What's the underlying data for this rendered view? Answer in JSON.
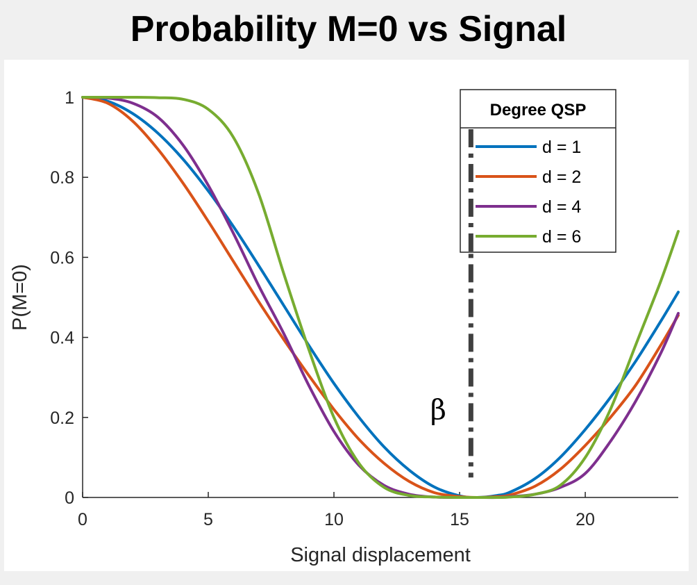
{
  "chart_data": {
    "type": "line",
    "title": "Probability M=0 vs Signal",
    "xlabel": "Signal displacement",
    "ylabel": "P(M=0)",
    "xlim": [
      0,
      23.7
    ],
    "ylim": [
      0,
      1
    ],
    "xticks": [
      0,
      5,
      10,
      15,
      20
    ],
    "yticks": [
      0,
      0.2,
      0.4,
      0.6,
      0.8,
      1
    ],
    "ytick_labels": [
      "0",
      "0.2",
      "0.4",
      "0.6",
      "0.8",
      "1"
    ],
    "grid": false,
    "legend": {
      "title": "Degree QSP",
      "placement": "top-right"
    },
    "series": [
      {
        "name": "d = 1",
        "color": "#0072BD",
        "x": [
          0,
          1,
          2,
          3,
          4,
          5,
          6,
          7,
          8,
          9,
          10,
          11,
          12,
          13,
          14,
          15,
          15.7,
          16.5,
          17,
          18,
          19,
          20,
          21,
          22,
          23,
          23.7
        ],
        "y": [
          1.0,
          0.99,
          0.959,
          0.91,
          0.845,
          0.766,
          0.677,
          0.58,
          0.48,
          0.38,
          0.285,
          0.2,
          0.126,
          0.068,
          0.026,
          0.004,
          0.0,
          0.005,
          0.013,
          0.047,
          0.1,
          0.17,
          0.25,
          0.34,
          0.44,
          0.513
        ]
      },
      {
        "name": "d = 2",
        "color": "#D95319",
        "x": [
          0,
          1,
          2,
          3,
          4,
          5,
          6,
          7,
          8,
          9,
          10,
          11,
          12,
          13,
          14,
          15,
          15.7,
          16.5,
          17,
          18,
          19,
          20,
          21,
          22,
          23,
          23.7
        ],
        "y": [
          1.0,
          0.985,
          0.94,
          0.87,
          0.785,
          0.69,
          0.59,
          0.49,
          0.395,
          0.305,
          0.22,
          0.145,
          0.085,
          0.04,
          0.012,
          0.002,
          0.0,
          0.002,
          0.006,
          0.028,
          0.07,
          0.13,
          0.2,
          0.28,
          0.38,
          0.455
        ]
      },
      {
        "name": "d = 4",
        "color": "#7E2F8E",
        "x": [
          0,
          1,
          2,
          3,
          4,
          5,
          6,
          7,
          8,
          9,
          10,
          11,
          12,
          13,
          14,
          15,
          15.7,
          16.5,
          17,
          18,
          19,
          20,
          21,
          22,
          23,
          23.7
        ],
        "y": [
          1.0,
          0.998,
          0.985,
          0.95,
          0.88,
          0.78,
          0.66,
          0.53,
          0.41,
          0.28,
          0.165,
          0.08,
          0.03,
          0.008,
          0.001,
          0.0,
          0.0,
          0.0,
          0.002,
          0.008,
          0.025,
          0.06,
          0.14,
          0.24,
          0.36,
          0.46
        ]
      },
      {
        "name": "d = 6",
        "color": "#77AC30",
        "x": [
          0,
          1,
          2,
          3,
          4,
          5,
          6,
          7,
          8,
          9,
          10,
          11,
          12,
          13,
          14,
          15,
          15.7,
          16.5,
          17,
          18,
          19,
          20,
          21,
          22,
          23,
          23.7
        ],
        "y": [
          1.0,
          1.0,
          1.0,
          0.999,
          0.995,
          0.97,
          0.9,
          0.76,
          0.56,
          0.37,
          0.2,
          0.085,
          0.025,
          0.005,
          0.001,
          0.0,
          0.0,
          0.0,
          0.001,
          0.008,
          0.03,
          0.1,
          0.22,
          0.38,
          0.54,
          0.665
        ]
      }
    ],
    "annotations": [
      {
        "type": "vline",
        "x": 15.45,
        "y_range": [
          0.05,
          0.93
        ],
        "style": "dash-dot",
        "color": "#404040"
      },
      {
        "type": "text",
        "text": "β",
        "x": 14.15,
        "y": 0.22
      }
    ]
  }
}
